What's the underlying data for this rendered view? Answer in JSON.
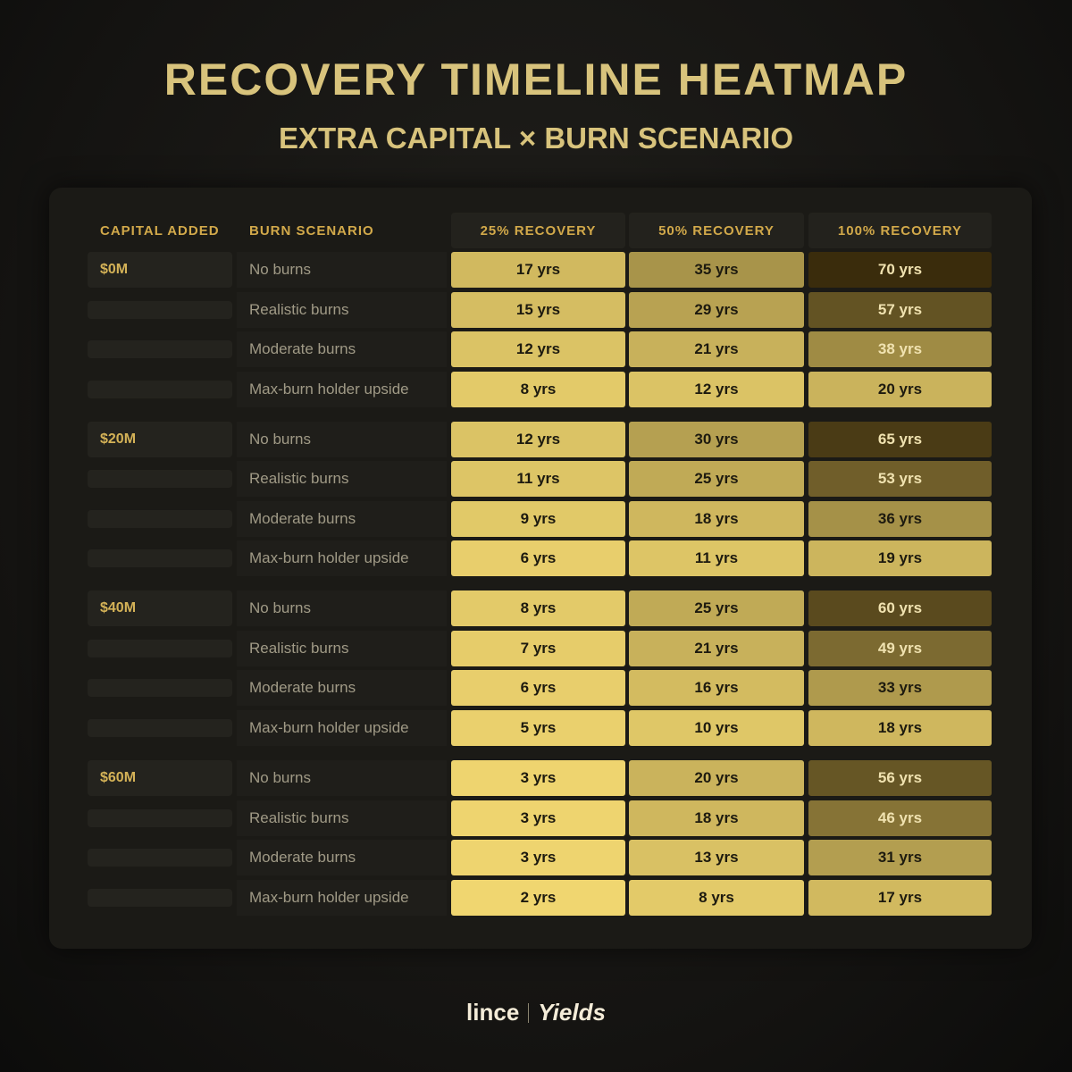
{
  "header": {
    "title": "RECOVERY TIMELINE HEATMAP",
    "subtitle": "EXTRA CAPITAL × BURN SCENARIO"
  },
  "table": {
    "columns": [
      "CAPITAL ADDED",
      "BURN SCENARIO",
      "25% RECOVERY",
      "50% RECOVERY",
      "100% RECOVERY"
    ],
    "groups": [
      {
        "capital": "$0M",
        "rows": [
          {
            "scenario": "No burns",
            "cells": [
              {
                "value": 17,
                "label": "17 yrs"
              },
              {
                "value": 35,
                "label": "35 yrs"
              },
              {
                "value": 70,
                "label": "70 yrs"
              }
            ]
          },
          {
            "scenario": "Realistic burns",
            "cells": [
              {
                "value": 15,
                "label": "15 yrs"
              },
              {
                "value": 29,
                "label": "29 yrs"
              },
              {
                "value": 57,
                "label": "57 yrs"
              }
            ]
          },
          {
            "scenario": "Moderate burns",
            "cells": [
              {
                "value": 12,
                "label": "12 yrs"
              },
              {
                "value": 21,
                "label": "21 yrs"
              },
              {
                "value": 38,
                "label": "38 yrs"
              }
            ]
          },
          {
            "scenario": "Max-burn holder upside",
            "cells": [
              {
                "value": 8,
                "label": "8 yrs"
              },
              {
                "value": 12,
                "label": "12 yrs"
              },
              {
                "value": 20,
                "label": "20 yrs"
              }
            ]
          }
        ]
      },
      {
        "capital": "$20M",
        "rows": [
          {
            "scenario": "No burns",
            "cells": [
              {
                "value": 12,
                "label": "12 yrs"
              },
              {
                "value": 30,
                "label": "30 yrs"
              },
              {
                "value": 65,
                "label": "65 yrs"
              }
            ]
          },
          {
            "scenario": "Realistic burns",
            "cells": [
              {
                "value": 11,
                "label": "11 yrs"
              },
              {
                "value": 25,
                "label": "25 yrs"
              },
              {
                "value": 53,
                "label": "53 yrs"
              }
            ]
          },
          {
            "scenario": "Moderate burns",
            "cells": [
              {
                "value": 9,
                "label": "9 yrs"
              },
              {
                "value": 18,
                "label": "18 yrs"
              },
              {
                "value": 36,
                "label": "36 yrs"
              }
            ]
          },
          {
            "scenario": "Max-burn holder upside",
            "cells": [
              {
                "value": 6,
                "label": "6 yrs"
              },
              {
                "value": 11,
                "label": "11 yrs"
              },
              {
                "value": 19,
                "label": "19 yrs"
              }
            ]
          }
        ]
      },
      {
        "capital": "$40M",
        "rows": [
          {
            "scenario": "No burns",
            "cells": [
              {
                "value": 8,
                "label": "8 yrs"
              },
              {
                "value": 25,
                "label": "25 yrs"
              },
              {
                "value": 60,
                "label": "60 yrs"
              }
            ]
          },
          {
            "scenario": "Realistic burns",
            "cells": [
              {
                "value": 7,
                "label": "7 yrs"
              },
              {
                "value": 21,
                "label": "21 yrs"
              },
              {
                "value": 49,
                "label": "49 yrs"
              }
            ]
          },
          {
            "scenario": "Moderate burns",
            "cells": [
              {
                "value": 6,
                "label": "6 yrs"
              },
              {
                "value": 16,
                "label": "16 yrs"
              },
              {
                "value": 33,
                "label": "33 yrs"
              }
            ]
          },
          {
            "scenario": "Max-burn holder upside",
            "cells": [
              {
                "value": 5,
                "label": "5 yrs"
              },
              {
                "value": 10,
                "label": "10 yrs"
              },
              {
                "value": 18,
                "label": "18 yrs"
              }
            ]
          }
        ]
      },
      {
        "capital": "$60M",
        "rows": [
          {
            "scenario": "No burns",
            "cells": [
              {
                "value": 3,
                "label": "3 yrs"
              },
              {
                "value": 20,
                "label": "20 yrs"
              },
              {
                "value": 56,
                "label": "56 yrs"
              }
            ]
          },
          {
            "scenario": "Realistic burns",
            "cells": [
              {
                "value": 3,
                "label": "3 yrs"
              },
              {
                "value": 18,
                "label": "18 yrs"
              },
              {
                "value": 46,
                "label": "46 yrs"
              }
            ]
          },
          {
            "scenario": "Moderate burns",
            "cells": [
              {
                "value": 3,
                "label": "3 yrs"
              },
              {
                "value": 13,
                "label": "13 yrs"
              },
              {
                "value": 31,
                "label": "31 yrs"
              }
            ]
          },
          {
            "scenario": "Max-burn holder upside",
            "cells": [
              {
                "value": 2,
                "label": "2 yrs"
              },
              {
                "value": 8,
                "label": "8 yrs"
              },
              {
                "value": 17,
                "label": "17 yrs"
              }
            ]
          }
        ]
      }
    ]
  },
  "footer": {
    "brand": "lince",
    "product": "Yields"
  }
}
